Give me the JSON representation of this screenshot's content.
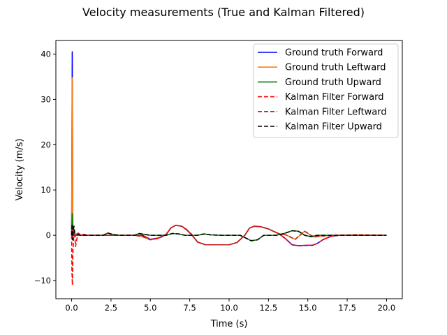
{
  "chart_data": {
    "type": "line",
    "title": "Velocity measurements (True and Kalman Filtered)",
    "xlabel": "Time (s)",
    "ylabel": "Velocity (m/s)",
    "xlim": [
      -1.0,
      21.0
    ],
    "ylim": [
      -14.0,
      43.0
    ],
    "xticks": [
      0.0,
      2.5,
      5.0,
      7.5,
      10.0,
      12.5,
      15.0,
      17.5,
      20.0
    ],
    "xtick_labels": [
      "0.0",
      "2.5",
      "5.0",
      "7.5",
      "10.0",
      "12.5",
      "15.0",
      "17.5",
      "20.0"
    ],
    "yticks": [
      -10,
      0,
      10,
      20,
      30,
      40
    ],
    "ytick_labels": [
      "−10",
      "0",
      "10",
      "20",
      "30",
      "40"
    ],
    "grid": false,
    "legend_position": "top-right",
    "series": [
      {
        "name": "Ground truth Forward",
        "color": "#0000ff",
        "dash": "solid",
        "x": [
          0.0,
          0.04,
          0.08,
          0.12,
          0.3,
          0.6,
          1.0,
          2.0,
          3.0,
          4.0,
          4.5,
          5.0,
          5.5,
          6.0,
          6.3,
          6.6,
          7.0,
          7.3,
          7.6,
          8.0,
          8.5,
          9.0,
          10.0,
          10.5,
          11.0,
          11.3,
          11.6,
          12.0,
          12.5,
          13.0,
          13.3,
          13.6,
          14.0,
          14.4,
          15.0,
          15.3,
          15.6,
          16.0,
          16.5,
          17.0,
          18.0,
          20.0
        ],
        "y": [
          0.0,
          40.5,
          0.0,
          0.0,
          0.1,
          0.0,
          0.0,
          0.0,
          0.0,
          0.0,
          0.0,
          -0.9,
          -0.6,
          0.2,
          1.6,
          2.2,
          2.0,
          1.2,
          0.2,
          -1.5,
          -2.1,
          -2.1,
          -2.1,
          -1.6,
          0.0,
          1.6,
          2.0,
          1.9,
          1.4,
          0.6,
          0.0,
          -0.8,
          -2.1,
          -2.3,
          -2.2,
          -2.2,
          -1.8,
          -0.9,
          -0.2,
          0.0,
          0.0,
          0.0
        ]
      },
      {
        "name": "Ground truth Leftward",
        "color": "#ff7f0e",
        "dash": "solid",
        "x": [
          0.0,
          0.04,
          0.08,
          0.12,
          0.3,
          0.6,
          1.0,
          2.0,
          3.0,
          4.0,
          4.5,
          5.0,
          5.5,
          6.0,
          6.3,
          6.6,
          7.0,
          7.3,
          7.6,
          8.0,
          8.5,
          9.0,
          10.0,
          10.5,
          11.0,
          11.3,
          11.6,
          12.0,
          12.5,
          13.0,
          13.3,
          13.6,
          13.9,
          14.2,
          14.5,
          14.8,
          15.1,
          15.4,
          15.8,
          16.5,
          17.0,
          18.0,
          20.0
        ],
        "y": [
          0.0,
          34.8,
          0.0,
          0.0,
          0.0,
          0.0,
          0.0,
          0.0,
          0.0,
          0.0,
          -0.3,
          -1.0,
          -0.7,
          0.1,
          1.6,
          2.2,
          2.0,
          1.3,
          0.3,
          -1.5,
          -2.1,
          -2.1,
          -2.1,
          -1.6,
          0.0,
          1.6,
          2.0,
          1.9,
          1.4,
          0.6,
          0.2,
          0.1,
          -0.4,
          -0.9,
          0.0,
          0.9,
          0.2,
          -0.4,
          -0.2,
          0.0,
          0.0,
          0.1,
          0.0
        ]
      },
      {
        "name": "Ground truth Upward",
        "color": "#008000",
        "dash": "solid",
        "x": [
          0.0,
          0.04,
          0.08,
          0.12,
          0.3,
          0.6,
          1.0,
          2.0,
          2.3,
          2.6,
          3.0,
          4.0,
          4.3,
          4.6,
          5.0,
          6.0,
          6.4,
          6.8,
          7.2,
          8.0,
          8.4,
          8.8,
          9.5,
          10.0,
          10.7,
          11.0,
          11.4,
          11.8,
          12.2,
          12.6,
          13.0,
          13.5,
          14.0,
          14.4,
          14.8,
          15.2,
          15.6,
          16.0,
          17.0,
          20.0
        ],
        "y": [
          0.0,
          4.8,
          0.0,
          0.0,
          0.0,
          0.0,
          0.0,
          0.0,
          0.5,
          0.2,
          0.0,
          0.0,
          0.4,
          0.2,
          0.0,
          0.0,
          0.4,
          0.3,
          0.0,
          0.0,
          0.3,
          0.1,
          0.0,
          0.0,
          0.0,
          -0.5,
          -1.2,
          -1.0,
          0.0,
          0.0,
          0.0,
          0.4,
          1.0,
          0.9,
          0.0,
          -0.3,
          0.0,
          0.0,
          0.0,
          0.0
        ]
      },
      {
        "name": "Kalman Filter Forward",
        "color": "#ff0000",
        "dash": "dashed",
        "x": [
          0.0,
          0.02,
          0.05,
          0.08,
          0.12,
          0.16,
          0.2,
          0.25,
          0.3,
          0.4,
          0.5,
          0.6,
          0.8,
          1.0,
          2.0,
          3.0,
          4.0,
          4.5,
          5.0,
          5.5,
          6.0,
          6.3,
          6.6,
          7.0,
          7.3,
          7.6,
          8.0,
          8.5,
          9.0,
          10.0,
          10.5,
          11.0,
          11.3,
          11.6,
          12.0,
          12.5,
          13.0,
          13.3,
          13.6,
          14.0,
          14.4,
          15.0,
          15.3,
          15.6,
          16.0,
          16.5,
          17.0,
          18.0,
          20.0
        ],
        "y": [
          0.0,
          -8.0,
          -11.0,
          -4.0,
          -1.0,
          1.0,
          0.0,
          -2.5,
          -1.5,
          0.5,
          0.3,
          0.1,
          0.2,
          0.0,
          0.0,
          0.0,
          0.0,
          0.0,
          -0.9,
          -0.6,
          0.2,
          1.6,
          2.2,
          2.0,
          1.2,
          0.2,
          -1.5,
          -2.1,
          -2.1,
          -2.1,
          -1.6,
          0.0,
          1.6,
          2.0,
          1.9,
          1.4,
          0.6,
          0.0,
          -0.8,
          -2.1,
          -2.3,
          -2.2,
          -2.2,
          -1.8,
          -0.9,
          -0.2,
          0.0,
          0.0,
          0.0
        ]
      },
      {
        "name": "Kalman Filter Leftward",
        "color": "#a52a2a",
        "dash": "dashed",
        "x": [
          0.0,
          0.03,
          0.06,
          0.1,
          0.15,
          0.2,
          0.3,
          0.4,
          0.6,
          1.0,
          2.0,
          3.0,
          4.0,
          4.5,
          5.0,
          5.5,
          6.0,
          6.3,
          6.6,
          7.0,
          7.3,
          7.6,
          8.0,
          8.5,
          9.0,
          10.0,
          10.5,
          11.0,
          11.3,
          11.6,
          12.0,
          12.5,
          13.0,
          13.3,
          13.6,
          13.9,
          14.2,
          14.5,
          14.8,
          15.1,
          15.4,
          15.8,
          16.5,
          17.0,
          18.0,
          20.0
        ],
        "y": [
          0.0,
          2.0,
          -1.0,
          1.5,
          0.5,
          -0.5,
          0.3,
          0.1,
          0.0,
          0.0,
          0.0,
          0.0,
          0.0,
          -0.3,
          -1.0,
          -0.7,
          0.1,
          1.6,
          2.2,
          2.0,
          1.3,
          0.3,
          -1.5,
          -2.1,
          -2.1,
          -2.1,
          -1.6,
          0.0,
          1.6,
          2.0,
          1.9,
          1.4,
          0.6,
          0.2,
          0.1,
          -0.4,
          -0.9,
          0.0,
          0.9,
          0.2,
          -0.4,
          -0.2,
          0.0,
          0.0,
          0.1,
          0.0
        ]
      },
      {
        "name": "Kalman Filter Upward",
        "color": "#000000",
        "dash": "dashed",
        "x": [
          0.0,
          0.03,
          0.06,
          0.1,
          0.15,
          0.2,
          0.3,
          0.4,
          0.6,
          1.0,
          2.0,
          2.3,
          2.6,
          3.0,
          4.0,
          4.3,
          4.6,
          5.0,
          6.0,
          6.4,
          6.8,
          7.2,
          8.0,
          8.4,
          8.8,
          9.5,
          10.0,
          10.7,
          11.0,
          11.4,
          11.8,
          12.2,
          12.6,
          13.0,
          13.5,
          14.0,
          14.4,
          14.8,
          15.2,
          15.6,
          16.0,
          17.0,
          20.0
        ],
        "y": [
          0.0,
          2.5,
          -1.0,
          1.0,
          2.0,
          0.5,
          0.4,
          0.2,
          0.0,
          0.0,
          0.0,
          0.5,
          0.2,
          0.0,
          0.0,
          0.4,
          0.2,
          0.0,
          0.0,
          0.4,
          0.3,
          0.0,
          0.0,
          0.3,
          0.1,
          0.0,
          0.0,
          0.0,
          -0.5,
          -1.2,
          -1.0,
          0.0,
          0.0,
          0.0,
          0.4,
          1.0,
          0.9,
          0.0,
          -0.3,
          0.0,
          0.0,
          0.0,
          0.0
        ]
      }
    ]
  }
}
